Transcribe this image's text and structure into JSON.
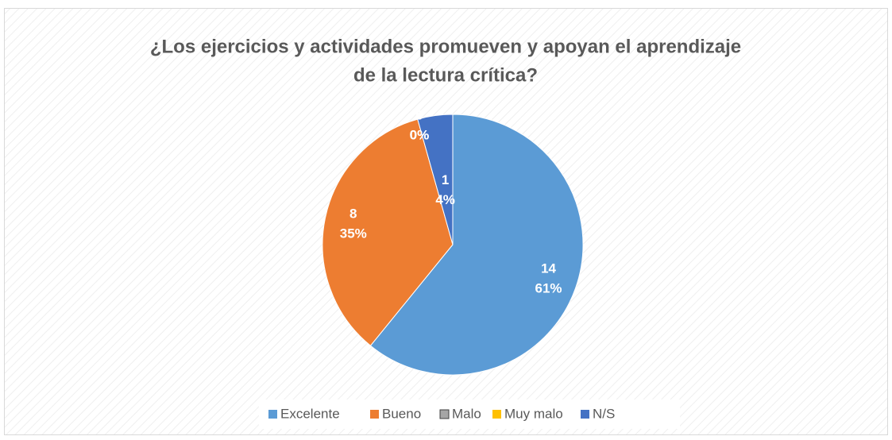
{
  "chart_data": {
    "type": "pie",
    "title": [
      "¿Los ejercicios y actividades promueven y apoyan el aprendizaje",
      "de la lectura crítica?"
    ],
    "categories": [
      "Excelente",
      "Bueno",
      "Malo",
      "Muy malo",
      "N/S"
    ],
    "values": [
      14,
      8,
      0,
      0,
      1
    ],
    "percent_labels": [
      "61%",
      "35%",
      "0%",
      "0%",
      "4%"
    ],
    "colors": [
      "#5b9bd5",
      "#ed7d31",
      "#a5a5a5",
      "#ffc000",
      "#4472c4"
    ],
    "legend": "bottom"
  }
}
